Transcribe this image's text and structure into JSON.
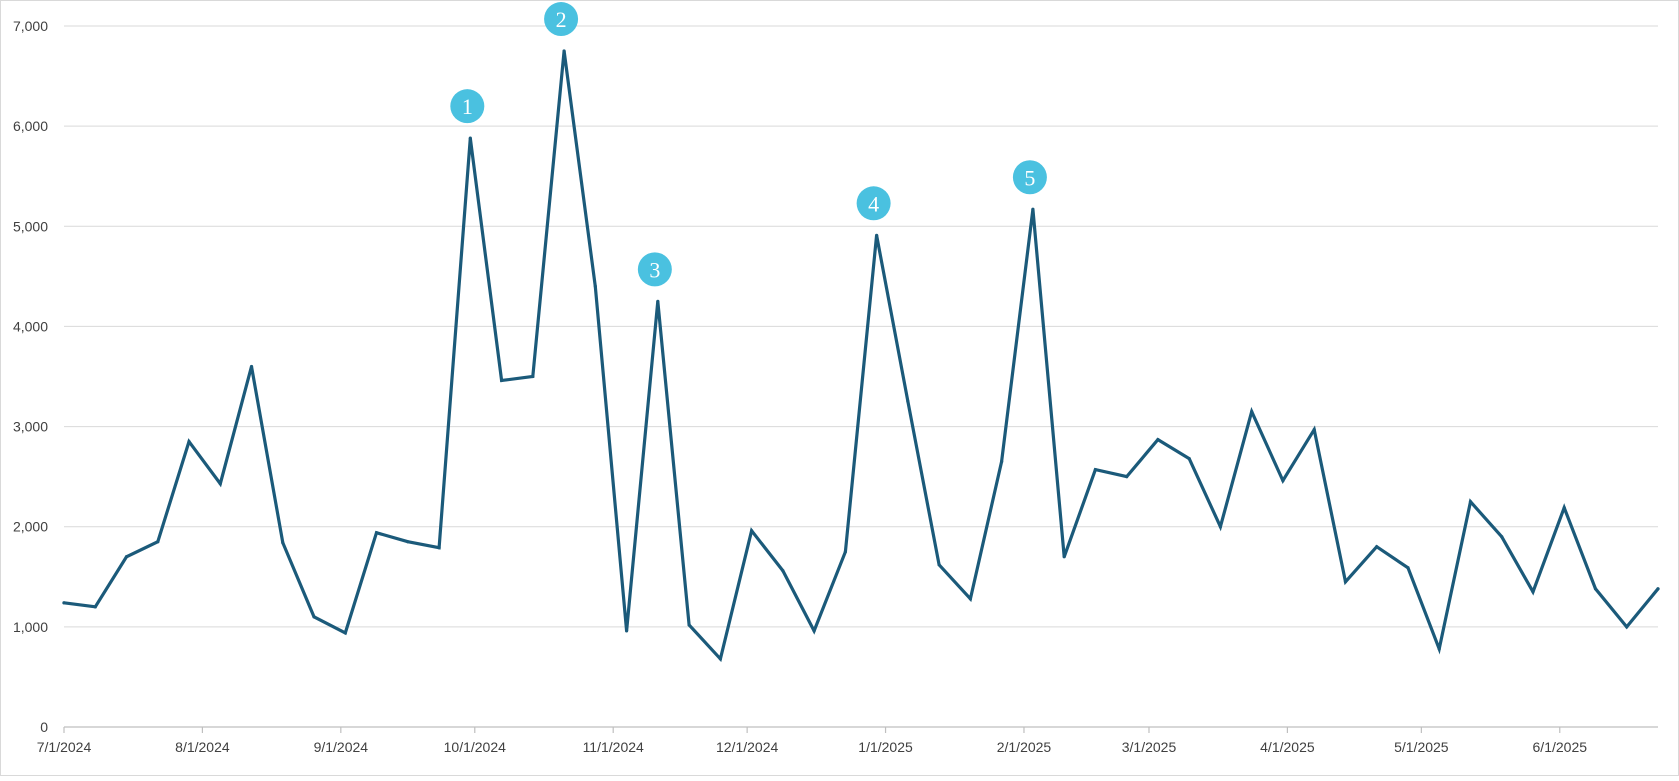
{
  "chart_data": {
    "type": "line",
    "title": "",
    "xlabel": "",
    "ylabel": "",
    "grid": true,
    "legend": "none",
    "ylim": [
      0,
      7000
    ],
    "xlim": [
      "2024-07-01",
      "2025-06-23"
    ],
    "y_ticks": [
      0,
      1000,
      2000,
      3000,
      4000,
      5000,
      6000,
      7000
    ],
    "y_tick_labels": [
      "0",
      "1,000",
      "2,000",
      "3,000",
      "4,000",
      "5,000",
      "6,000",
      "7,000"
    ],
    "x_ticks": [
      "2024-07-01",
      "2024-08-01",
      "2024-09-01",
      "2024-10-01",
      "2024-11-01",
      "2024-12-01",
      "2025-01-01",
      "2025-02-01",
      "2025-03-01",
      "2025-04-01",
      "2025-05-01",
      "2025-06-01"
    ],
    "x_tick_labels": [
      "7/1/2024",
      "8/1/2024",
      "9/1/2024",
      "10/1/2024",
      "11/1/2024",
      "12/1/2024",
      "1/1/2025",
      "2/1/2025",
      "3/1/2025",
      "4/1/2025",
      "5/1/2025",
      "6/1/2025"
    ],
    "colors": {
      "line": "#1b5a7a",
      "marker": "#4ac1e0",
      "grid": "#d9d9d9",
      "axis": "#bfbfbf"
    },
    "series": [
      {
        "x": [
          "2024-07-01",
          "2024-07-08",
          "2024-07-15",
          "2024-07-22",
          "2024-07-29",
          "2024-08-05",
          "2024-08-12",
          "2024-08-19",
          "2024-08-26",
          "2024-09-02",
          "2024-09-09",
          "2024-09-16",
          "2024-09-23",
          "2024-09-30",
          "2024-10-07",
          "2024-10-14",
          "2024-10-21",
          "2024-10-28",
          "2024-11-04",
          "2024-11-11",
          "2024-11-18",
          "2024-11-25",
          "2024-12-02",
          "2024-12-09",
          "2024-12-16",
          "2024-12-23",
          "2024-12-30",
          "2025-01-06",
          "2025-01-13",
          "2025-01-20",
          "2025-01-27",
          "2025-02-03",
          "2025-02-10",
          "2025-02-17",
          "2025-02-24",
          "2025-03-03",
          "2025-03-10",
          "2025-03-17",
          "2025-03-24",
          "2025-03-31",
          "2025-04-07",
          "2025-04-14",
          "2025-04-21",
          "2025-04-28",
          "2025-05-05",
          "2025-05-12",
          "2025-05-19",
          "2025-05-26",
          "2025-06-02",
          "2025-06-09",
          "2025-06-16",
          "2025-06-23"
        ],
        "values": [
          1240,
          1200,
          1700,
          1850,
          2850,
          2430,
          3600,
          1840,
          1100,
          940,
          1940,
          1850,
          1790,
          5880,
          3460,
          3500,
          6750,
          4400,
          960,
          4250,
          1020,
          680,
          1960,
          1560,
          960,
          1750,
          4910,
          3250,
          1620,
          1280,
          2650,
          5170,
          1700,
          2570,
          2500,
          2870,
          2680,
          2000,
          3150,
          2460,
          2970,
          1450,
          1800,
          1590,
          780,
          2250,
          1900,
          1350,
          2190,
          1380,
          1000,
          1380
        ]
      }
    ],
    "annotations": [
      {
        "label": "1",
        "x": "2024-09-30",
        "y": 5880
      },
      {
        "label": "2",
        "x": "2024-10-21",
        "y": 6750
      },
      {
        "label": "3",
        "x": "2024-11-11",
        "y": 4250
      },
      {
        "label": "4",
        "x": "2024-12-30",
        "y": 4910
      },
      {
        "label": "5",
        "x": "2025-02-03",
        "y": 5170
      }
    ]
  }
}
